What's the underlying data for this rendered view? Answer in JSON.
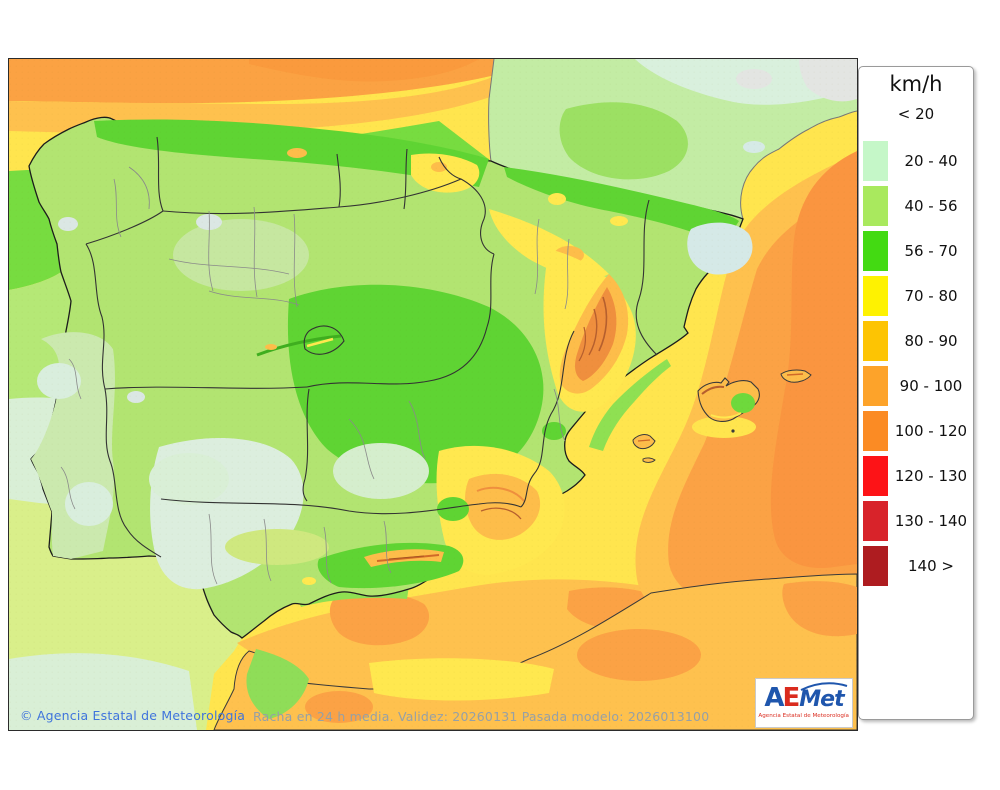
{
  "legend": {
    "title": "km/h",
    "no_swatch_label": "< 20",
    "entries": [
      {
        "label": "20 - 40",
        "color": "#c5f7c8"
      },
      {
        "label": "40 - 56",
        "color": "#a9e95e"
      },
      {
        "label": "56 - 70",
        "color": "#43da12"
      },
      {
        "label": "70 - 80",
        "color": "#fef201"
      },
      {
        "label": "80 - 90",
        "color": "#fdc403"
      },
      {
        "label": "90 - 100",
        "color": "#fda32a"
      },
      {
        "label": "100 - 120",
        "color": "#fb8b24"
      },
      {
        "label": "120 - 130",
        "color": "#fd1317"
      },
      {
        "label": "130 - 140",
        "color": "#d8232a"
      },
      {
        "label": "140 >",
        "color": "#ae1c20"
      }
    ]
  },
  "footer": {
    "copyright": "© Agencia Estatal de Meteorología",
    "model_info": "Racha en 24 h media. Validez: 20260131 Pasada modelo: 2026013100"
  },
  "logo": {
    "a": "A",
    "e": "E",
    "met": "Met",
    "subtitle": "Agencia Estatal de Meteorología"
  }
}
